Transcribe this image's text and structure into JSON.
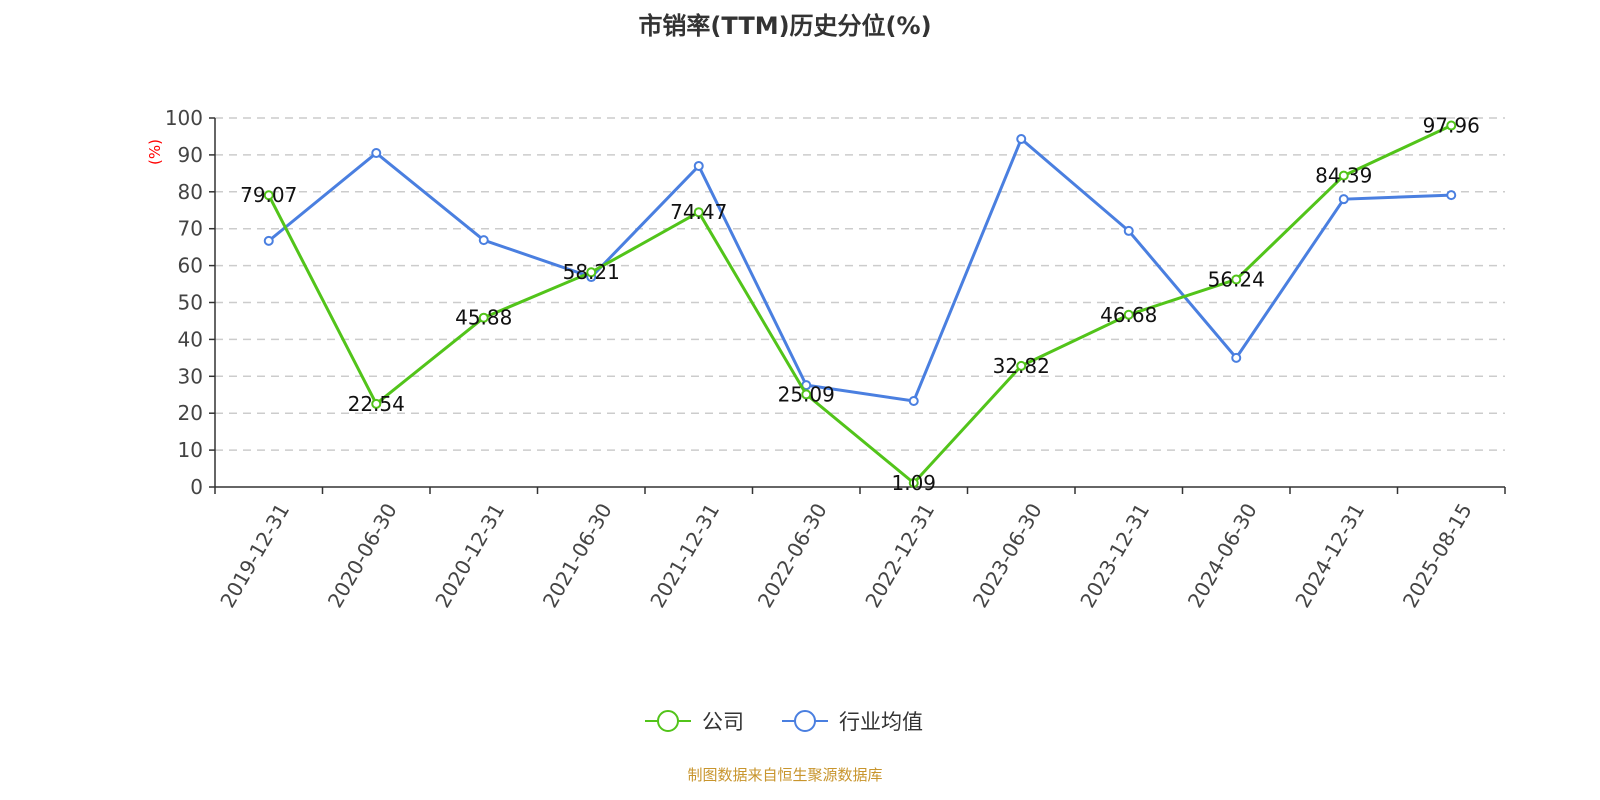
{
  "chart_data": {
    "type": "line",
    "title": "市销率(TTM)历史分位(%)",
    "ylabel": "(%)",
    "ylim": [
      0,
      100
    ],
    "yticks": [
      0,
      10,
      20,
      30,
      40,
      50,
      60,
      70,
      80,
      90,
      100
    ],
    "grid": true,
    "legend_position": "bottom",
    "categories": [
      "2019-12-31",
      "2020-06-30",
      "2020-12-31",
      "2021-06-30",
      "2021-12-31",
      "2022-06-30",
      "2022-12-31",
      "2023-06-30",
      "2023-12-31",
      "2024-06-30",
      "2024-12-31",
      "2025-08-15"
    ],
    "series": [
      {
        "name": "公司",
        "color": "#52c41a",
        "labels": true,
        "values": [
          79.07,
          22.54,
          45.88,
          58.21,
          74.47,
          25.09,
          1.09,
          32.82,
          46.68,
          56.24,
          84.39,
          97.96
        ]
      },
      {
        "name": "行业均值",
        "color": "#4a7fe0",
        "labels": false,
        "values": [
          66.7,
          90.5,
          66.9,
          56.9,
          87.0,
          27.6,
          23.3,
          94.3,
          69.4,
          35.0,
          78.0,
          79.1
        ]
      }
    ]
  },
  "source": "制图数据来自恒生聚源数据库"
}
